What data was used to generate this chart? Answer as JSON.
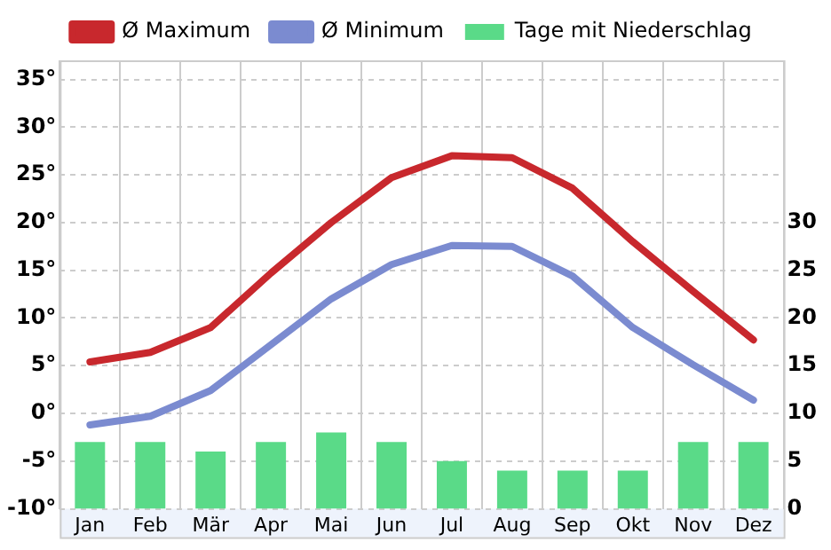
{
  "chart_data": {
    "type": "line",
    "categories": [
      "Jan",
      "Feb",
      "Mär",
      "Apr",
      "Mai",
      "Jun",
      "Jul",
      "Aug",
      "Sep",
      "Okt",
      "Nov",
      "Dez"
    ],
    "series": [
      {
        "name": "Ø Maximum",
        "color": "#c8282d",
        "values": [
          5.4,
          6.4,
          9,
          14.7,
          20,
          24.7,
          27,
          26.8,
          23.6,
          18,
          12.8,
          7.7
        ]
      },
      {
        "name": "Ø Minimum",
        "color": "#7b8bd0",
        "values": [
          -1.2,
          -0.3,
          2.4,
          7.2,
          12,
          15.6,
          17.6,
          17.5,
          14.4,
          9,
          5.1,
          1.4
        ]
      },
      {
        "name": "Tage mit Niederschlag",
        "type": "bar",
        "axis": "y2",
        "color": "#5ada88",
        "values": [
          7,
          7,
          6,
          7,
          8,
          7,
          5,
          4,
          4,
          4,
          7,
          7
        ]
      }
    ],
    "ylim": [
      -10,
      37
    ],
    "yticks": [
      {
        "value": -10,
        "label": "-10°"
      },
      {
        "value": -5,
        "label": "-5°"
      },
      {
        "value": 0,
        "label": "0°"
      },
      {
        "value": 5,
        "label": "5°"
      },
      {
        "value": 10,
        "label": "10°"
      },
      {
        "value": 15,
        "label": "15°"
      },
      {
        "value": 20,
        "label": "20°"
      },
      {
        "value": 25,
        "label": "25°"
      },
      {
        "value": 30,
        "label": "30°"
      },
      {
        "value": 35,
        "label": "35°"
      }
    ],
    "y2lim": [
      0,
      47
    ],
    "y2ticks": [
      0,
      5,
      10,
      15,
      20,
      25,
      30
    ],
    "grid": true,
    "legend": "top",
    "marker": "none",
    "line_style": "solid"
  }
}
